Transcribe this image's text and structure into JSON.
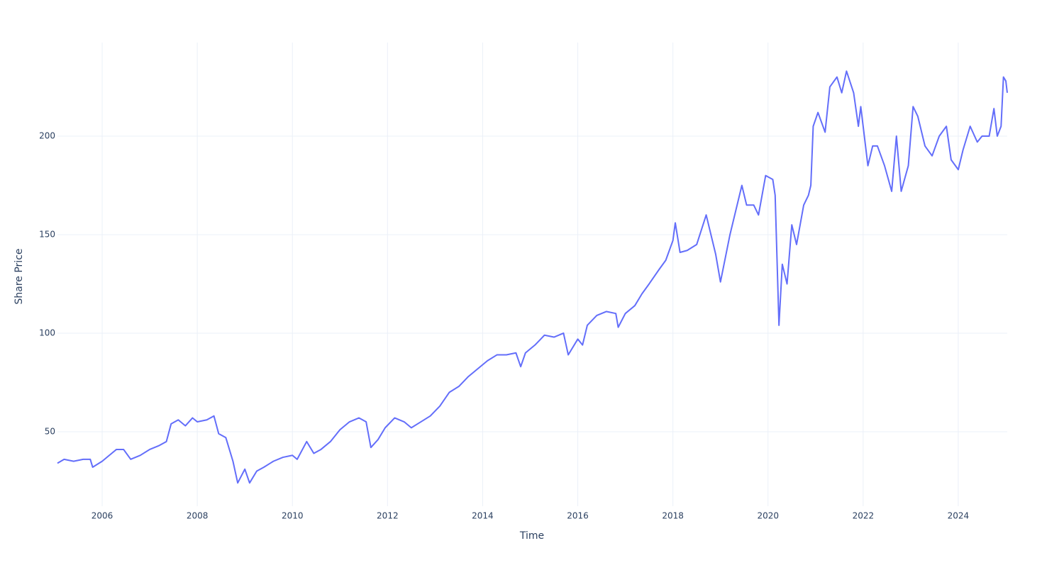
{
  "chart_data": {
    "type": "line",
    "x_label": "Time",
    "y_label": "Share Price",
    "color": "#636efa",
    "grid": true,
    "xlim": [
      2005.06,
      2025.03
    ],
    "ylim": [
      12.2,
      247.5
    ],
    "xticks": [
      2006,
      2008,
      2010,
      2012,
      2014,
      2016,
      2018,
      2020,
      2022,
      2024
    ],
    "yticks": [
      50,
      100,
      150,
      200
    ],
    "x": [
      2005.06,
      2005.2,
      2005.4,
      2005.6,
      2005.75,
      2005.8,
      2006.0,
      2006.15,
      2006.3,
      2006.45,
      2006.6,
      2006.8,
      2007.0,
      2007.2,
      2007.35,
      2007.45,
      2007.6,
      2007.75,
      2007.9,
      2008.0,
      2008.2,
      2008.35,
      2008.45,
      2008.6,
      2008.75,
      2008.85,
      2009.0,
      2009.1,
      2009.25,
      2009.4,
      2009.6,
      2009.8,
      2010.0,
      2010.1,
      2010.3,
      2010.45,
      2010.6,
      2010.8,
      2011.0,
      2011.2,
      2011.4,
      2011.55,
      2011.65,
      2011.8,
      2011.95,
      2012.15,
      2012.35,
      2012.5,
      2012.7,
      2012.9,
      2013.1,
      2013.3,
      2013.5,
      2013.7,
      2013.9,
      2014.1,
      2014.3,
      2014.5,
      2014.7,
      2014.8,
      2014.9,
      2015.1,
      2015.3,
      2015.5,
      2015.7,
      2015.8,
      2016.0,
      2016.1,
      2016.2,
      2016.4,
      2016.6,
      2016.8,
      2016.85,
      2017.0,
      2017.2,
      2017.35,
      2017.5,
      2017.7,
      2017.85,
      2018.0,
      2018.05,
      2018.15,
      2018.3,
      2018.5,
      2018.7,
      2018.9,
      2019.0,
      2019.2,
      2019.35,
      2019.45,
      2019.55,
      2019.7,
      2019.8,
      2019.95,
      2020.1,
      2020.15,
      2020.23,
      2020.3,
      2020.4,
      2020.5,
      2020.6,
      2020.75,
      2020.85,
      2020.9,
      2020.95,
      2021.05,
      2021.2,
      2021.3,
      2021.45,
      2021.55,
      2021.65,
      2021.8,
      2021.9,
      2021.95,
      2022.0,
      2022.1,
      2022.2,
      2022.3,
      2022.45,
      2022.6,
      2022.7,
      2022.8,
      2022.95,
      2023.05,
      2023.15,
      2023.3,
      2023.45,
      2023.6,
      2023.75,
      2023.85,
      2024.0,
      2024.1,
      2024.25,
      2024.4,
      2024.5,
      2024.65,
      2024.75,
      2024.82,
      2024.9,
      2024.95,
      2025.0,
      2025.03
    ],
    "values": [
      34,
      36,
      35,
      36,
      36,
      32,
      35,
      38,
      41,
      41,
      36,
      38,
      41,
      43,
      45,
      54,
      56,
      53,
      57,
      55,
      56,
      58,
      49,
      47,
      35,
      24,
      31,
      24,
      30,
      32,
      35,
      37,
      38,
      36,
      45,
      39,
      41,
      45,
      51,
      55,
      57,
      55,
      42,
      46,
      52,
      57,
      55,
      52,
      55,
      58,
      63,
      70,
      73,
      78,
      82,
      86,
      89,
      89,
      90,
      83,
      90,
      94,
      99,
      98,
      100,
      89,
      97,
      94,
      104,
      109,
      111,
      110,
      103,
      110,
      114,
      120,
      125,
      132,
      137,
      147,
      156,
      141,
      142,
      145,
      160,
      140,
      126,
      150,
      165,
      175,
      165,
      165,
      160,
      180,
      178,
      170,
      104,
      135,
      125,
      155,
      145,
      165,
      170,
      175,
      205,
      212,
      202,
      225,
      230,
      222,
      233,
      222,
      205,
      215,
      205,
      185,
      195,
      195,
      185,
      172,
      200,
      172,
      185,
      215,
      210,
      195,
      190,
      200,
      205,
      188,
      183,
      193,
      205,
      197,
      200,
      200,
      214,
      200,
      205,
      230,
      228,
      222
    ]
  }
}
